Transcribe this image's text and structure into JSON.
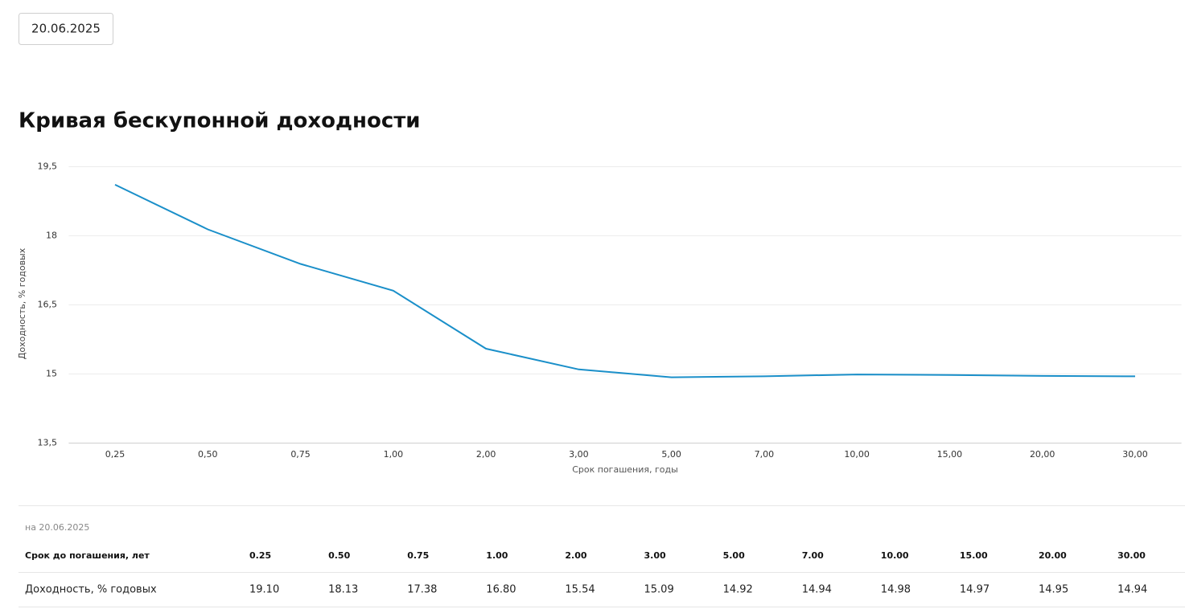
{
  "date_button": "20.06.2025",
  "title": "Кривая бескупонной доходности",
  "chart_data": {
    "type": "line",
    "y_label": "Доходность, % годовых",
    "x_label": "Срок погашения, годы",
    "categories": [
      "0,25",
      "0,50",
      "0,75",
      "1,00",
      "2,00",
      "3,00",
      "5,00",
      "7,00",
      "10,00",
      "15,00",
      "20,00",
      "30,00"
    ],
    "values": [
      19.1,
      18.13,
      17.38,
      16.8,
      15.54,
      15.09,
      14.92,
      14.94,
      14.98,
      14.97,
      14.95,
      14.94
    ],
    "color": "#1a8fc9",
    "ylim": [
      13.5,
      19.5
    ],
    "yticks": [
      {
        "value": 13.5,
        "label": "13,5"
      },
      15,
      {
        "value": 16.5,
        "label": "16,5"
      },
      18,
      {
        "value": 19.5,
        "label": "19,5"
      }
    ],
    "grid": true
  },
  "table": {
    "caption": "на 20.06.2025",
    "header": [
      "Срок до погашения, лет",
      "0.25",
      "0.50",
      "0.75",
      "1.00",
      "2.00",
      "3.00",
      "5.00",
      "7.00",
      "10.00",
      "15.00",
      "20.00",
      "30.00"
    ],
    "rows": [
      [
        "Доходность, % годовых",
        "19.10",
        "18.13",
        "17.38",
        "16.80",
        "15.54",
        "15.09",
        "14.92",
        "14.94",
        "14.98",
        "14.97",
        "14.95",
        "14.94"
      ]
    ]
  }
}
